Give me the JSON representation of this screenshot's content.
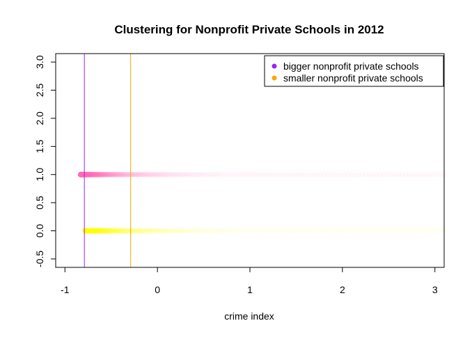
{
  "chart_data": {
    "type": "scatter",
    "title": "Clustering for Nonprofit Private Schools in 2012",
    "xlabel": "crime index",
    "ylabel": "",
    "xlim": [
      -1.1,
      3.1
    ],
    "ylim": [
      -0.65,
      3.15
    ],
    "x_ticks": [
      -1,
      0,
      1,
      2,
      3
    ],
    "x_tick_labels": [
      "-1",
      "0",
      "1",
      "2",
      "3"
    ],
    "y_ticks": [
      -0.5,
      0,
      0.5,
      1,
      1.5,
      2,
      2.5,
      3
    ],
    "y_tick_labels": [
      "-0.5",
      "0.0",
      "0.5",
      "1.0",
      "1.5",
      "2.0",
      "2.5",
      "3.0"
    ],
    "grid": false,
    "legend_position": "top-right",
    "series": [
      {
        "name": "bigger nonprofit private schools",
        "legend_color": "#a020f0",
        "point_color": "#ff69b4",
        "y": 1,
        "x_range": [
          -0.83,
          3.1
        ],
        "cluster_center_x": -0.79
      },
      {
        "name": "smaller nonprofit private schools",
        "legend_color": "#ffa500",
        "point_color": "#ffff00",
        "y": 0,
        "x_range": [
          -0.78,
          3.1
        ],
        "cluster_center_x": -0.29
      }
    ]
  }
}
